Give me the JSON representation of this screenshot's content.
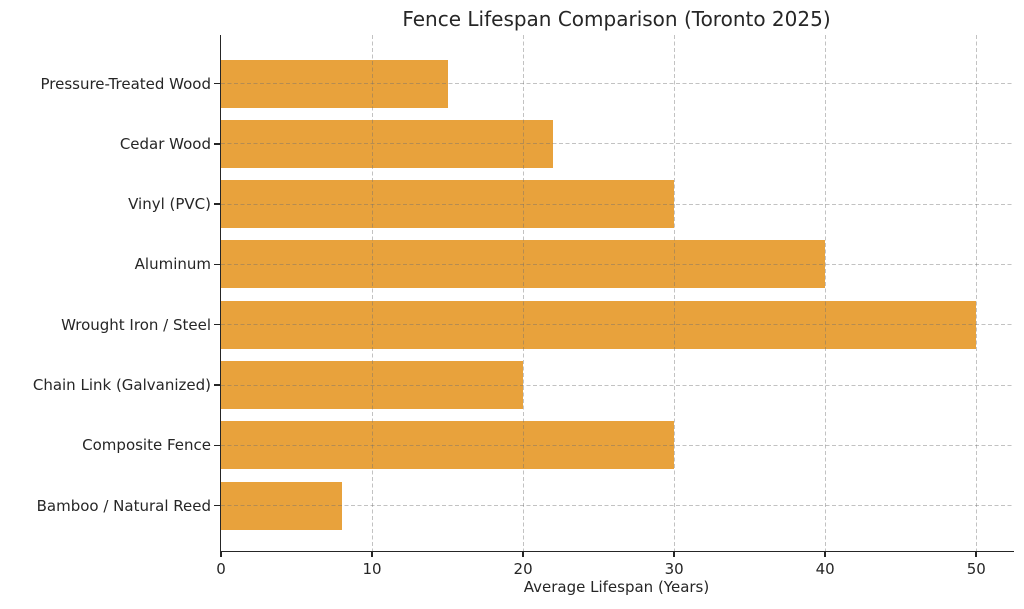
{
  "chart_data": {
    "type": "bar",
    "orientation": "horizontal",
    "title": "Fence Lifespan Comparison (Toronto 2025)",
    "xlabel": "Average Lifespan (Years)",
    "ylabel": "",
    "categories": [
      "Pressure-Treated Wood",
      "Cedar Wood",
      "Vinyl (PVC)",
      "Aluminum",
      "Wrought Iron / Steel",
      "Chain Link (Galvanized)",
      "Composite Fence",
      "Bamboo / Natural Reed"
    ],
    "values": [
      15,
      22,
      30,
      40,
      50,
      20,
      30,
      8
    ],
    "xticks": [
      0,
      10,
      20,
      30,
      40,
      50
    ],
    "xlim": [
      0,
      52.5
    ],
    "grid": "dashed, both axes, drawn over bars",
    "legend": "none",
    "bar_color": "#E8A23C",
    "axis_color": "#262626",
    "grid_color": "rgba(110,110,110,0.42)",
    "background": "#FFFFFF"
  }
}
